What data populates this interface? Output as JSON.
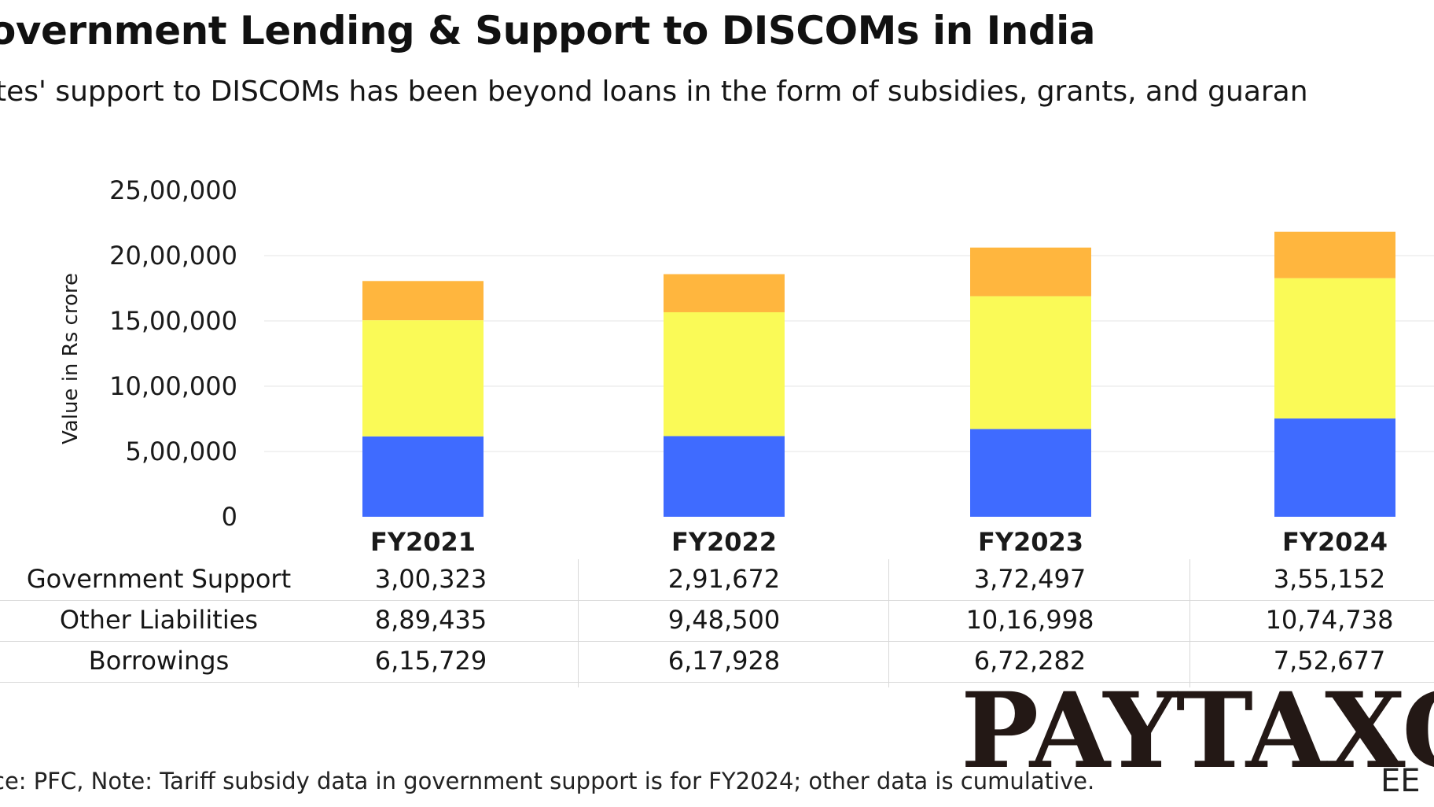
{
  "title": "overnment Lending & Support to DISCOMs in India",
  "subtitle": "tes' support to DISCOMs has been beyond loans in the form of subsidies, grants, and guaran",
  "footnote": "ce: PFC, Note: Tariff subsidy data in government support is for FY2024; other data is cumulative.",
  "corner_mark": "EE",
  "logo_text": "PAYTAXO",
  "colors": {
    "government_support": "#FFB63E",
    "other_liabilities": "#FAFA57",
    "borrowings": "#3F6BFF",
    "grid": "#e6e6e6"
  },
  "chart_data": {
    "type": "bar",
    "stacked": true,
    "categories": [
      "FY2021",
      "FY2022",
      "FY2023",
      "FY2024"
    ],
    "ylabel": "Value in Rs crore",
    "ylim": [
      0,
      2500000
    ],
    "yticks": [
      0,
      500000,
      1000000,
      1500000,
      2000000,
      2500000
    ],
    "ytick_labels": [
      "0",
      "5,00,000",
      "10,00,000",
      "15,00,000",
      "20,00,000",
      "25,00,000"
    ],
    "grid": true,
    "series": [
      {
        "name": "Borrowings",
        "values": [
          615729,
          617928,
          672282,
          752677
        ]
      },
      {
        "name": "Other Liabilities",
        "values": [
          889435,
          948500,
          1016998,
          1074738
        ]
      },
      {
        "name": "Government Support",
        "values": [
          300323,
          291672,
          372497,
          355152
        ]
      }
    ]
  },
  "table": {
    "rows": [
      {
        "label": "Government Support",
        "cells": [
          "3,00,323",
          "2,91,672",
          "3,72,497",
          "3,55,152"
        ]
      },
      {
        "label": "Other Liabilities",
        "cells": [
          "8,89,435",
          "9,48,500",
          "10,16,998",
          "10,74,738"
        ]
      },
      {
        "label": "Borrowings",
        "cells": [
          "6,15,729",
          "6,17,928",
          "6,72,282",
          "7,52,677"
        ]
      }
    ]
  }
}
